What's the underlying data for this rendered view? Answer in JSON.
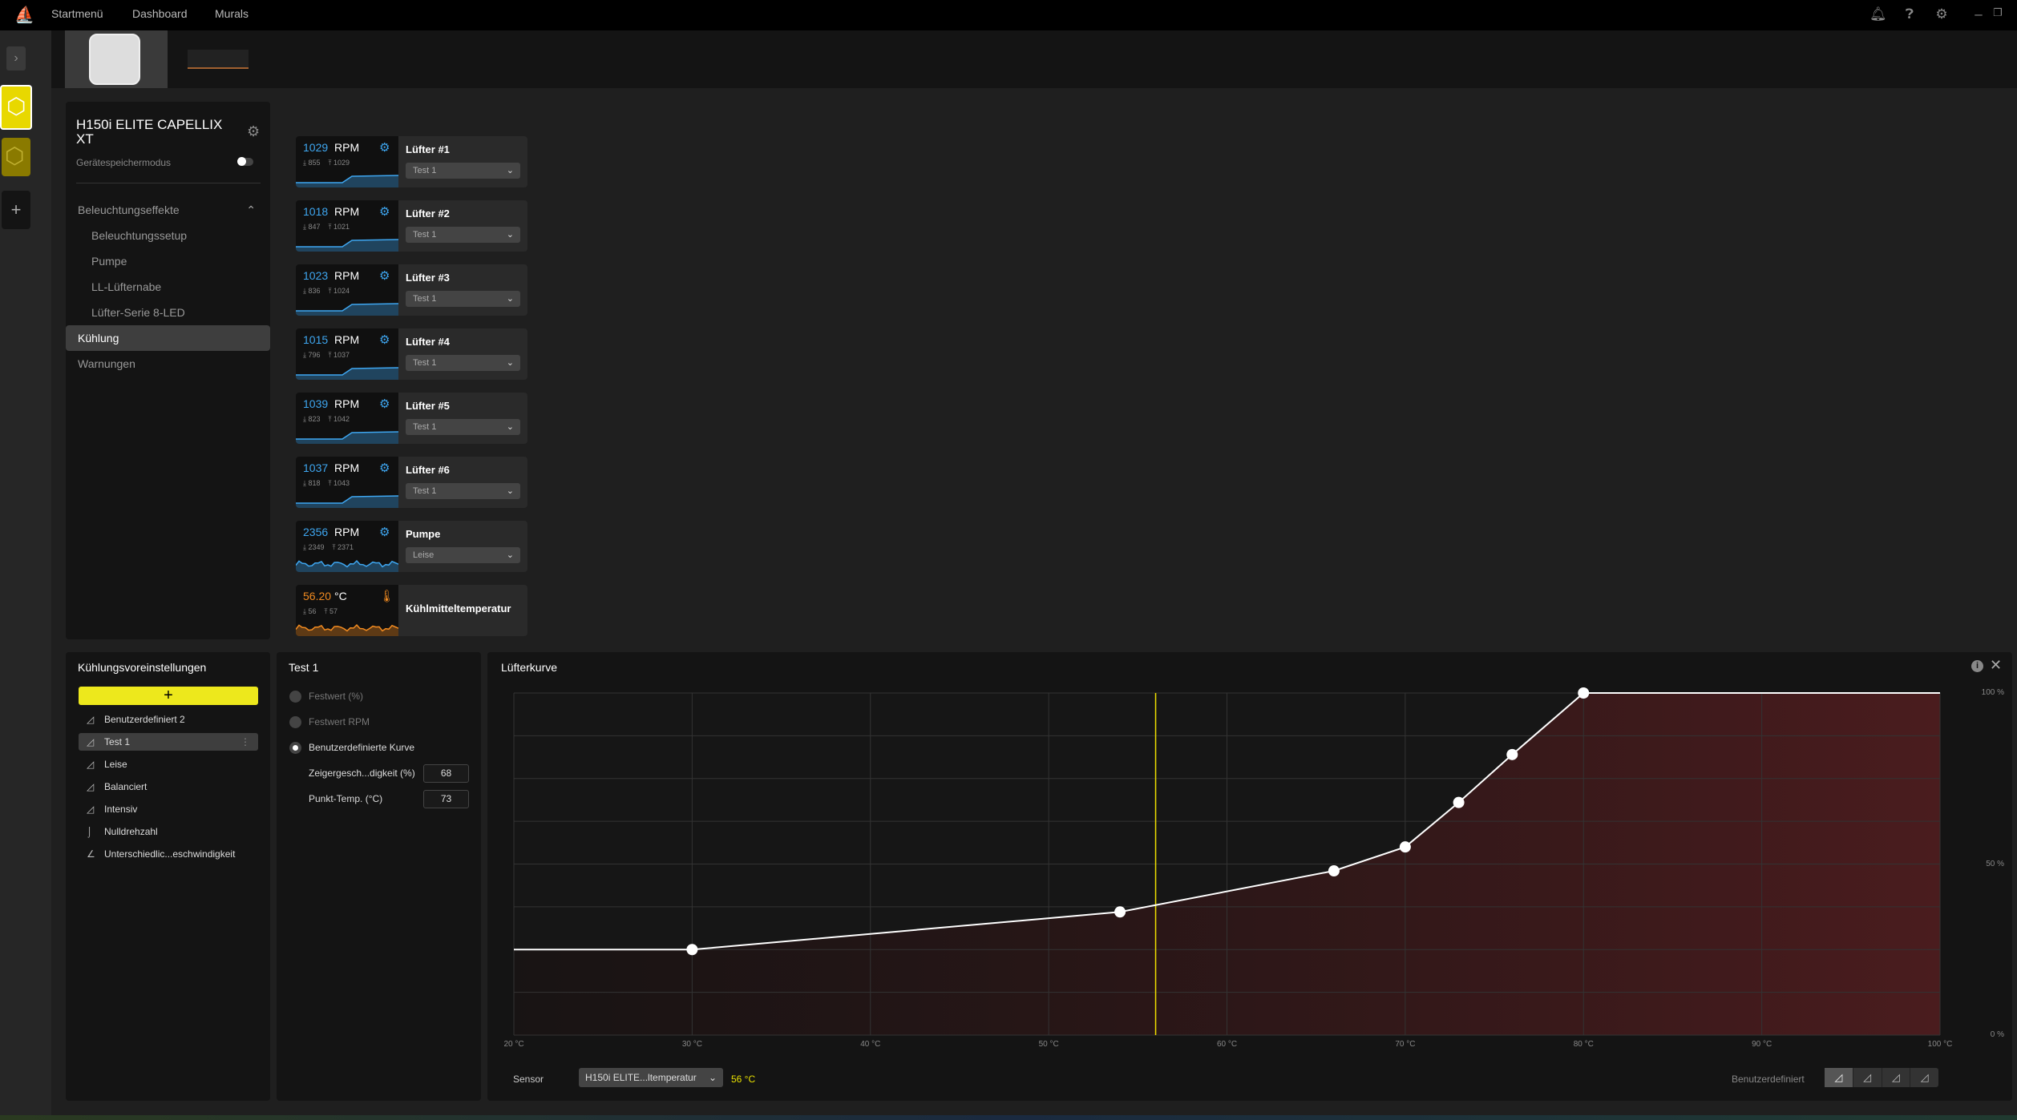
{
  "topbar": {
    "nav": [
      "Startmenü",
      "Dashboard",
      "Murals"
    ]
  },
  "device": {
    "title": "H150i ELITE CAPELLIX XT",
    "memory_mode_label": "Gerätespeichermodus",
    "memory_mode_on": false
  },
  "sidebar": {
    "items": [
      {
        "label": "Beleuchtungseffekte",
        "level": 0
      },
      {
        "label": "Beleuchtungssetup",
        "level": 1
      },
      {
        "label": "Pumpe",
        "level": 1
      },
      {
        "label": "LL-Lüfternabe",
        "level": 1
      },
      {
        "label": "Lüfter-Serie 8-LED",
        "level": 1
      },
      {
        "label": "Kühlung",
        "level": 0,
        "active": true
      },
      {
        "label": "Warnungen",
        "level": 0
      }
    ]
  },
  "sensors": [
    {
      "value": "1029",
      "unit": "RPM",
      "min": "855",
      "max": "1029",
      "name": "Lüfter #1",
      "preset": "Test 1"
    },
    {
      "value": "1018",
      "unit": "RPM",
      "min": "847",
      "max": "1021",
      "name": "Lüfter #2",
      "preset": "Test 1"
    },
    {
      "value": "1023",
      "unit": "RPM",
      "min": "836",
      "max": "1024",
      "name": "Lüfter #3",
      "preset": "Test 1"
    },
    {
      "value": "1015",
      "unit": "RPM",
      "min": "796",
      "max": "1037",
      "name": "Lüfter #4",
      "preset": "Test 1"
    },
    {
      "value": "1039",
      "unit": "RPM",
      "min": "823",
      "max": "1042",
      "name": "Lüfter #5",
      "preset": "Test 1"
    },
    {
      "value": "1037",
      "unit": "RPM",
      "min": "818",
      "max": "1043",
      "name": "Lüfter #6",
      "preset": "Test 1"
    },
    {
      "value": "2356",
      "unit": "RPM",
      "min": "2349",
      "max": "2371",
      "name": "Pumpe",
      "preset": "Leise"
    },
    {
      "value": "56.20",
      "unit": "°C",
      "min": "56",
      "max": "57",
      "name": "Kühlmitteltemperatur"
    }
  ],
  "presets": {
    "title": "Kühlungsvoreinstellungen",
    "items": [
      "Benutzerdefiniert 2",
      "Test 1",
      "Leise",
      "Balanciert",
      "Intensiv",
      "Nulldrehzahl",
      "Unterschiedlic...eschwindigkeit"
    ],
    "selected": "Test 1"
  },
  "preset_detail": {
    "title": "Test 1",
    "modes": [
      "Festwert (%)",
      "Festwert RPM",
      "Benutzerdefinierte Kurve"
    ],
    "selected_mode": "Benutzerdefinierte Kurve",
    "speed_label": "Zeigergesch...digkeit (%)",
    "speed_value": "68",
    "temp_label": "Punkt-Temp. (°C)",
    "temp_value": "73"
  },
  "curve": {
    "title": "Lüfterkurve",
    "sensor_label": "Sensor",
    "sensor_value": "H150i ELITE...ltemperatur",
    "sensor_reading": "56 °C",
    "mode_label": "Benutzerdefiniert"
  },
  "chart_data": {
    "type": "line",
    "title": "Lüfterkurve",
    "x": [
      30,
      54,
      66,
      70,
      73,
      76,
      80
    ],
    "y": [
      25,
      36,
      48,
      55,
      68,
      82,
      100
    ],
    "xlim": [
      20,
      100
    ],
    "ylim": [
      0,
      100
    ],
    "xticks": [
      "20 °C",
      "30 °C",
      "40 °C",
      "50 °C",
      "60 °C",
      "70 °C",
      "80 °C",
      "90 °C",
      "100 °C"
    ],
    "yticks": [
      "100 %",
      "50 %",
      "0 %"
    ],
    "current_temp": 56,
    "grid": true,
    "colors": {
      "line": "#ffffff",
      "fill": "#4a1c1e",
      "marker": "#f0e000"
    }
  }
}
